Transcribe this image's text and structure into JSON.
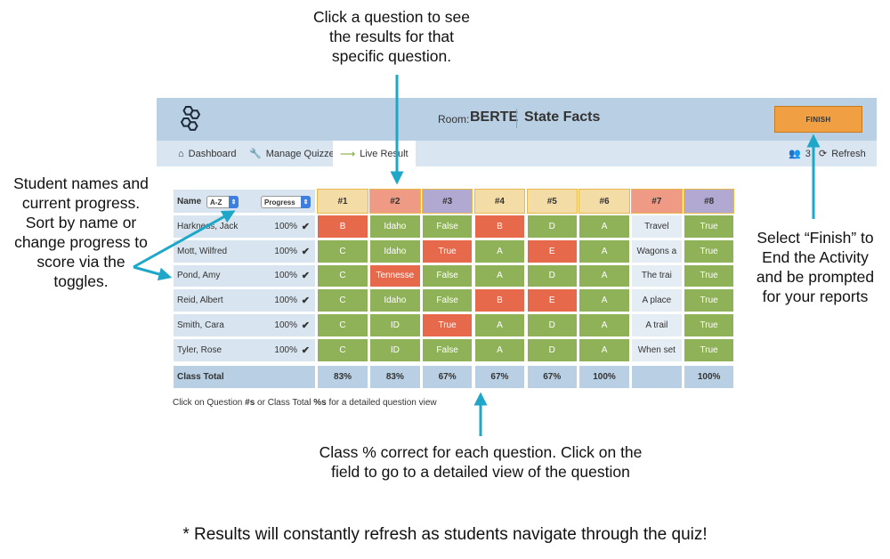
{
  "annotations": {
    "top": [
      "Click a question to see",
      "the results for that",
      "specific question."
    ],
    "left": [
      "Student names and",
      "current progress.",
      "Sort by name or",
      "change progress to",
      "score via the",
      "toggles."
    ],
    "right": [
      "Select “Finish” to",
      "End the Activity",
      "and be prompted",
      "for your reports"
    ],
    "bottom": [
      "Class % correct for each question. Click on the",
      "field to go to a detailed view of the question"
    ],
    "footer": "* Results will constantly refresh as students navigate through the quiz!"
  },
  "app": {
    "room_label": "Room:",
    "room_code": "BERTE",
    "quiz_name": "State Facts",
    "finish_label": "FINISH",
    "nav": {
      "dashboard": "Dashboard",
      "manage_quizzes": "Manage Quizzes",
      "live_results": "Live Result",
      "student_count": "3",
      "refresh": "Refresh"
    },
    "logo_icon": "hexagon-cluster-icon"
  },
  "table": {
    "name_header": "Name",
    "sort_select": "A-Z",
    "progress_select": "Progress",
    "questions": [
      "#1",
      "#2",
      "#3",
      "#4",
      "#5",
      "#6",
      "#7",
      "#8"
    ],
    "question_colors": [
      "yellow",
      "orange",
      "purple",
      "yellow",
      "yellow",
      "yellow",
      "orange",
      "purple"
    ],
    "students": [
      {
        "name": "Harkness, Jack",
        "progress": "100%",
        "answers": [
          "B",
          "Idaho",
          "False",
          "B",
          "D",
          "A",
          "Travel",
          "True"
        ],
        "status": [
          "r",
          "g",
          "g",
          "r",
          "g",
          "g",
          "w",
          "g"
        ]
      },
      {
        "name": "Mott, Wilfred",
        "progress": "100%",
        "answers": [
          "C",
          "Idaho",
          "True",
          "A",
          "E",
          "A",
          "Wagons a",
          "True"
        ],
        "status": [
          "g",
          "g",
          "r",
          "g",
          "r",
          "g",
          "w",
          "g"
        ]
      },
      {
        "name": "Pond, Amy",
        "progress": "100%",
        "answers": [
          "C",
          "Tennesse",
          "False",
          "A",
          "D",
          "A",
          "The trai",
          "True"
        ],
        "status": [
          "g",
          "r",
          "g",
          "g",
          "g",
          "g",
          "w",
          "g"
        ]
      },
      {
        "name": "Reid, Albert",
        "progress": "100%",
        "answers": [
          "C",
          "Idaho",
          "False",
          "B",
          "E",
          "A",
          "A place",
          "True"
        ],
        "status": [
          "g",
          "g",
          "g",
          "r",
          "r",
          "g",
          "w",
          "g"
        ]
      },
      {
        "name": "Smith, Cara",
        "progress": "100%",
        "answers": [
          "C",
          "ID",
          "True",
          "A",
          "D",
          "A",
          "A trail",
          "True"
        ],
        "status": [
          "g",
          "g",
          "r",
          "g",
          "g",
          "g",
          "w",
          "g"
        ]
      },
      {
        "name": "Tyler, Rose",
        "progress": "100%",
        "answers": [
          "C",
          "ID",
          "False",
          "A",
          "D",
          "A",
          "When set",
          "True"
        ],
        "status": [
          "g",
          "g",
          "g",
          "g",
          "g",
          "g",
          "w",
          "g"
        ]
      }
    ],
    "total_label": "Class Total",
    "totals": [
      "83%",
      "83%",
      "67%",
      "67%",
      "67%",
      "100%",
      "",
      "100%"
    ],
    "check_mark": "✔"
  },
  "hint": {
    "prefix": "Click on Question ",
    "b1": "#s",
    "mid": " or Class Total ",
    "b2": "%s",
    "suffix": " for a detailed question view"
  }
}
